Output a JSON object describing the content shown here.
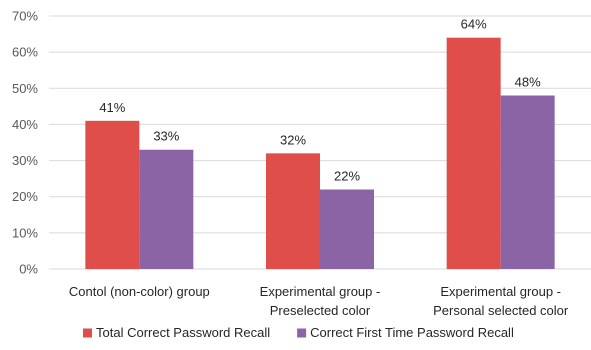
{
  "chart_data": {
    "type": "bar",
    "categories": [
      [
        "Contol (non-color) group"
      ],
      [
        "Experimental group -",
        "Preselected color"
      ],
      [
        "Experimental group -",
        "Personal selected color"
      ]
    ],
    "series": [
      {
        "name": "Total Correct Password Recall",
        "color": "#e04e4c",
        "values": [
          41,
          32,
          64
        ],
        "labels": [
          "41%",
          "32%",
          "64%"
        ]
      },
      {
        "name": "Correct First Time Password Recall",
        "color": "#8b64a6",
        "values": [
          33,
          22,
          48
        ],
        "labels": [
          "33%",
          "22%",
          "48%"
        ]
      }
    ],
    "y_ticks": [
      "0%",
      "10%",
      "20%",
      "30%",
      "40%",
      "50%",
      "60%",
      "70%"
    ],
    "ylim": [
      0,
      70
    ],
    "grid": true,
    "legend": "bottom",
    "title": "",
    "xlabel": "",
    "ylabel": ""
  }
}
